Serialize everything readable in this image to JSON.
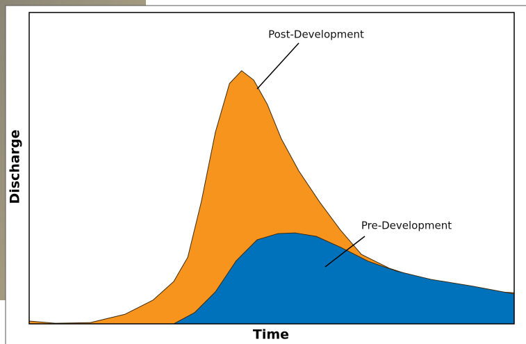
{
  "chart_data": {
    "type": "area",
    "x_label": "Time",
    "y_label": "Discharge",
    "xlim": [
      0,
      100
    ],
    "ylim": [
      0,
      100
    ],
    "series": [
      {
        "name": "Post-Development",
        "color": "#f7941d",
        "x": [
          0,
          5.4,
          12.6,
          19.8,
          25.5,
          29.8,
          32.7,
          35.5,
          38.4,
          41.3,
          43.8,
          46.3,
          49.1,
          52.0,
          55.6,
          59.9,
          64.2,
          68.5,
          74.2,
          79.9,
          87.1,
          94.3,
          100
        ],
        "values": [
          0.9,
          0.2,
          0.4,
          3.1,
          7.6,
          13.6,
          21.4,
          39.3,
          61.6,
          77.2,
          81.3,
          78.3,
          70.5,
          59.4,
          49.1,
          39.1,
          30.1,
          22.3,
          17.9,
          15.0,
          12.3,
          10.5,
          10.0
        ]
      },
      {
        "name": "Pre-Development",
        "color": "#0072bc",
        "x": [
          0,
          29.8,
          34.1,
          38.4,
          42.7,
          47.0,
          51.3,
          54.9,
          59.2,
          64.2,
          69.9,
          75.6,
          82.8,
          91.4,
          100
        ],
        "values": [
          0,
          0,
          3.6,
          10.3,
          20.3,
          27.0,
          29.0,
          29.2,
          28.1,
          24.6,
          20.1,
          17.0,
          14.3,
          12.1,
          9.6
        ]
      }
    ]
  }
}
